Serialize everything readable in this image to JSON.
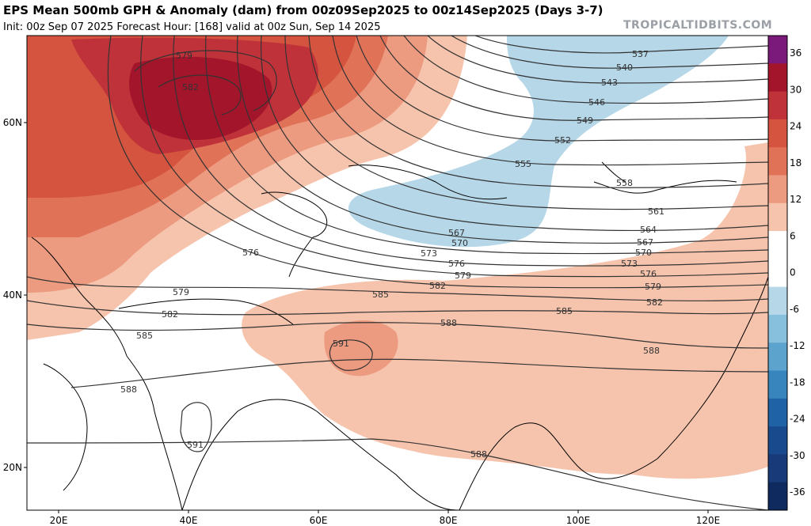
{
  "header": {
    "title": "EPS Mean 500mb GPH & Anomaly (dam) from 00z09Sep2025 to 00z14Sep2025 (Days 3-7)",
    "subtitle": "Init: 00z Sep 07 2025   Forecast Hour: [168]   valid at 00z Sun, Sep 14 2025",
    "site": "TROPICALTIDBITS.COM"
  },
  "map": {
    "lat_labels": [
      "60N",
      "40N",
      "20N"
    ],
    "lon_labels": [
      "20E",
      "40E",
      "60E",
      "80E",
      "100E",
      "120E"
    ],
    "contour_labels": [
      "579",
      "582",
      "537",
      "540",
      "543",
      "546",
      "549",
      "552",
      "555",
      "558",
      "561",
      "564",
      "567",
      "570",
      "573",
      "576",
      "579",
      "582",
      "585",
      "588",
      "591",
      "576",
      "579",
      "582",
      "585",
      "588",
      "591",
      "567",
      "570",
      "573",
      "576",
      "579",
      "582",
      "585",
      "588",
      "588"
    ]
  },
  "colorbar": {
    "ticks": [
      "36",
      "30",
      "24",
      "18",
      "12",
      "6",
      "0",
      "-6",
      "-12",
      "-18",
      "-24",
      "-30",
      "-36"
    ],
    "colors": [
      "#7b1a7a",
      "#a3152b",
      "#c0323a",
      "#d4543f",
      "#e07258",
      "#ec9a80",
      "#f6c4ad",
      "#ffffff",
      "#ffffff",
      "#b5d7e8",
      "#87c0dc",
      "#5ca4cd",
      "#3884bd",
      "#1f62a6",
      "#1a4a8e",
      "#183a78",
      "#0f2a5e"
    ]
  }
}
